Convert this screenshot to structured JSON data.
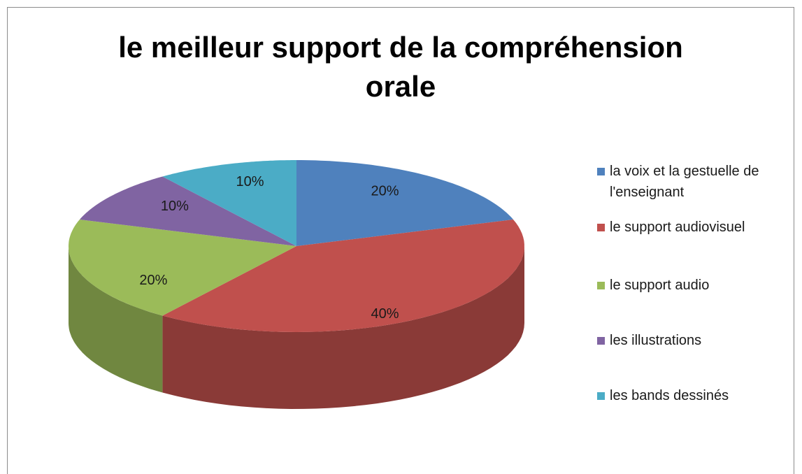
{
  "chart_data": {
    "type": "pie",
    "title": "le meilleur support de la compréhension orale",
    "categories": [
      "la voix et la gestuelle de l'enseignant",
      "le support audiovisuel",
      "le support audio",
      "les illustrations",
      "les bands dessinés"
    ],
    "values": [
      20,
      40,
      20,
      10,
      10
    ],
    "value_labels": [
      "20%",
      "40%",
      "20%",
      "10%",
      "10%"
    ],
    "colors": [
      "#4f81bd",
      "#c0504d",
      "#9bbb59",
      "#8064a2",
      "#4bacc6"
    ],
    "legend": "right"
  }
}
